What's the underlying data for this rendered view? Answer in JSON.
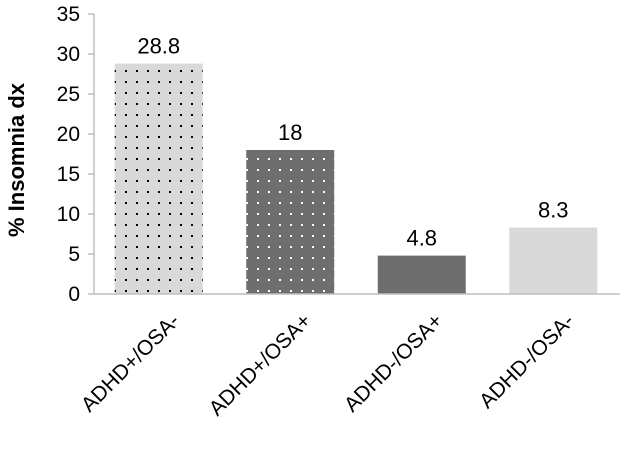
{
  "chart_data": {
    "type": "bar",
    "title": "",
    "xlabel": "",
    "ylabel": "% Insomnia dx",
    "categories": [
      "ADHD+/OSA-",
      "ADHD+/OSA+",
      "ADHD-/OSA+",
      "ADHD-/OSA-"
    ],
    "values": [
      28.8,
      18,
      4.8,
      8.3
    ],
    "data_labels": [
      "28.8",
      "18",
      "4.8",
      "8.3"
    ],
    "ylim": [
      0,
      35
    ],
    "yticks": [
      0,
      5,
      10,
      15,
      20,
      25,
      30,
      35
    ],
    "ytick_labels": [
      "0",
      "5",
      "10",
      "15",
      "20",
      "25",
      "30",
      "35"
    ],
    "grid": false,
    "legend": "none",
    "bar_styles": [
      {
        "fill": "#d9d9d9",
        "pattern": "dots",
        "dot_color": "#000000"
      },
      {
        "fill": "#6e6e6e",
        "pattern": "dots",
        "dot_color": "#ffffff"
      },
      {
        "fill": "#6e6e6e",
        "pattern": "none"
      },
      {
        "fill": "#d9d9d9",
        "pattern": "none"
      }
    ],
    "axis_color": "#bfbfbf"
  }
}
